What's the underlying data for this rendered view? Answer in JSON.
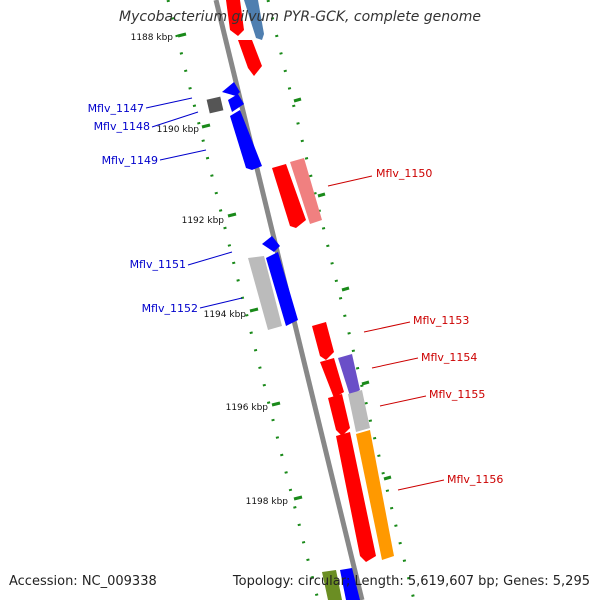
{
  "title": "Mycobacterium gilvum PYR-GCK, complete genome",
  "footer": {
    "accession": "Accession: NC_009338",
    "summary": "Topology: circular; Length: 5,619,607 bp; Genes: 5,295"
  },
  "scale_labels": [
    "1188 kbp",
    "1190 kbp",
    "1192 kbp",
    "1194 kbp",
    "1196 kbp",
    "1198 kbp"
  ],
  "genes_left": [
    "Mflv_1147",
    "Mflv_1148",
    "Mflv_1149",
    "Mflv_1151",
    "Mflv_1152"
  ],
  "genes_right": [
    "Mflv_1150",
    "Mflv_1153",
    "Mflv_1154",
    "Mflv_1155",
    "Mflv_1156"
  ],
  "colors": {
    "forward_label": "#0000cc",
    "reverse_label": "#cc0000",
    "backbone": "#888888",
    "tick": "#1a8a1a",
    "red": "#ff0000",
    "blue": "#0000ff",
    "pink": "#f08080",
    "gray": "#bbbbbb",
    "darkgray": "#555555",
    "purple": "#6a4fc8",
    "orange": "#ff9900",
    "steelblue": "#4f7fb0"
  }
}
